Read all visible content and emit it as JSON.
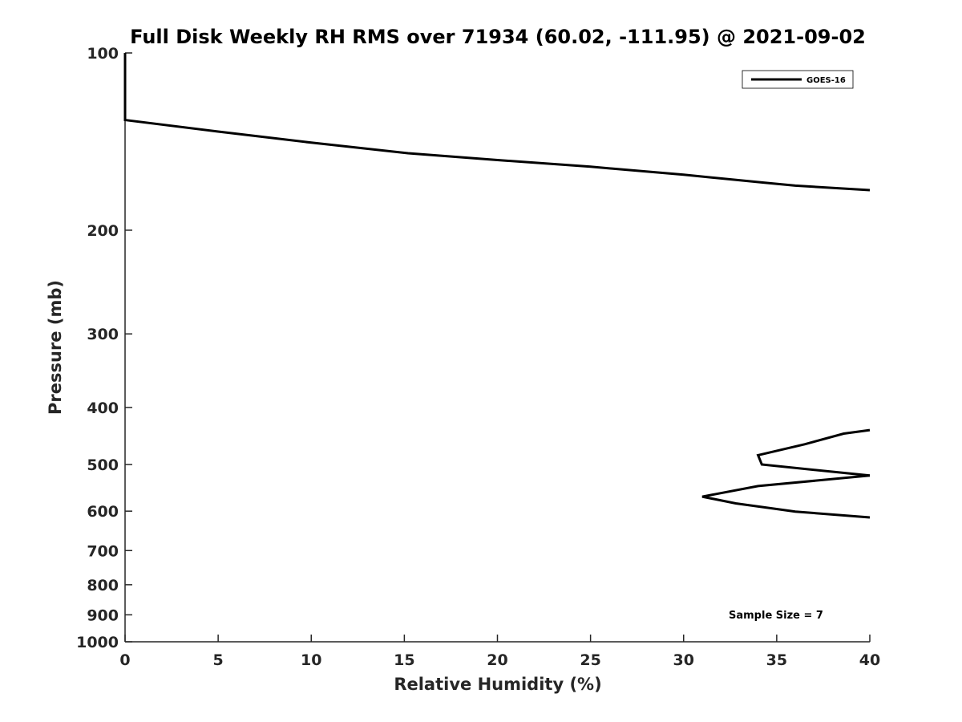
{
  "chart_data": {
    "type": "line",
    "title": "Full Disk Weekly RH RMS over 71934 (60.02, -111.95) @ 2021-09-02",
    "xlabel": "Relative Humidity (%)",
    "ylabel": "Pressure (mb)",
    "xlim": [
      0,
      40
    ],
    "ylim": [
      100,
      1000
    ],
    "yscale": "log",
    "y_reversed": true,
    "grid": false,
    "x_ticks": [
      0,
      5,
      10,
      15,
      20,
      25,
      30,
      35,
      40
    ],
    "x_tick_labels": [
      "0",
      "5",
      "10",
      "15",
      "20",
      "25",
      "30",
      "35",
      "40"
    ],
    "y_ticks": [
      100,
      200,
      300,
      400,
      500,
      600,
      700,
      800,
      900,
      1000
    ],
    "y_tick_labels": [
      "100",
      "200",
      "300",
      "400",
      "500",
      "600",
      "700",
      "800",
      "900",
      "1000"
    ],
    "legend": {
      "position": "top-right",
      "entries": [
        "GOES-16"
      ]
    },
    "annotation": "Sample Size = 7",
    "line_color": "#000000",
    "series": [
      {
        "name": "GOES-16",
        "segments": [
          [
            {
              "x": 0,
              "y": 100
            },
            {
              "x": 0,
              "y": 125
            },
            {
              "x": 0,
              "y": 130
            },
            {
              "x": 5,
              "y": 136
            },
            {
              "x": 10,
              "y": 142
            },
            {
              "x": 15.2,
              "y": 148
            },
            {
              "x": 20,
              "y": 152
            },
            {
              "x": 25,
              "y": 156
            },
            {
              "x": 30,
              "y": 161
            },
            {
              "x": 34.3,
              "y": 166
            },
            {
              "x": 36,
              "y": 168
            },
            {
              "x": 40,
              "y": 171
            }
          ],
          [
            {
              "x": 40,
              "y": 437
            },
            {
              "x": 38.6,
              "y": 443
            },
            {
              "x": 36.5,
              "y": 462
            },
            {
              "x": 34,
              "y": 482
            },
            {
              "x": 34.2,
              "y": 500
            },
            {
              "x": 40,
              "y": 522
            }
          ],
          [
            {
              "x": 40,
              "y": 522
            },
            {
              "x": 34,
              "y": 544
            },
            {
              "x": 31,
              "y": 567
            },
            {
              "x": 32.8,
              "y": 582
            },
            {
              "x": 36,
              "y": 601
            },
            {
              "x": 40,
              "y": 615
            }
          ]
        ]
      }
    ]
  }
}
